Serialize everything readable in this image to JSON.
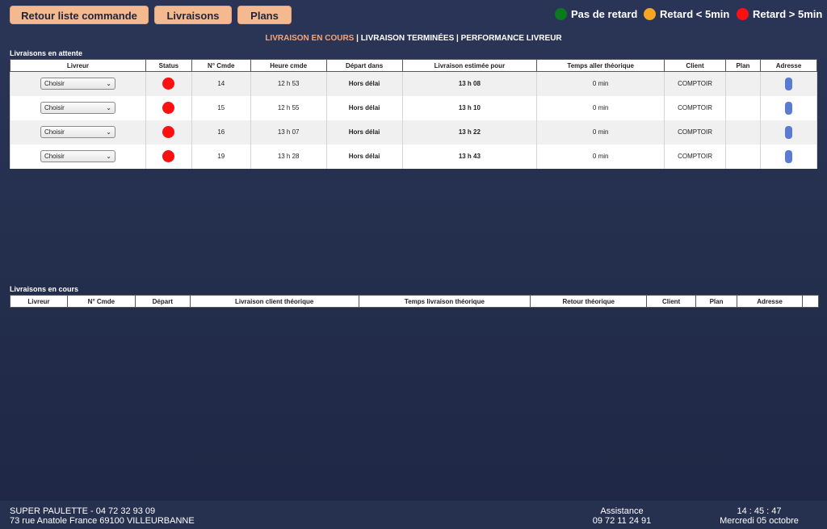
{
  "toolbar": {
    "back_label": "Retour liste commande",
    "deliveries_label": "Livraisons",
    "plans_label": "Plans"
  },
  "legend": [
    {
      "label": "Pas de retard",
      "color": "#0a7a1f"
    },
    {
      "label": "Retard < 5min",
      "color": "#f5a623"
    },
    {
      "label": "Retard > 5min",
      "color": "#ff1010"
    }
  ],
  "nav": {
    "active": "LIVRAISON EN COURS",
    "sep": " | ",
    "done": "LIVRAISON TERMINÉES",
    "perf": "PERFORMANCE LIVREUR"
  },
  "pending": {
    "title": "Livraisons en attente",
    "headers": [
      "Livreur",
      "Status",
      "N° Cmde",
      "Heure cmde",
      "Départ dans",
      "Livraison estimée pour",
      "Temps aller théorique",
      "Client",
      "Plan",
      "Adresse"
    ],
    "rows": [
      {
        "livreur": "Choisir",
        "status_color": "#ff1010",
        "num": "14",
        "heure": "12 h 53",
        "depart": "Hors délai",
        "estimee": "13 h 08",
        "temps": "0 min",
        "client": "COMPTOIR",
        "plan": ""
      },
      {
        "livreur": "Choisir",
        "status_color": "#ff1010",
        "num": "15",
        "heure": "12 h 55",
        "depart": "Hors délai",
        "estimee": "13 h 10",
        "temps": "0 min",
        "client": "COMPTOIR",
        "plan": ""
      },
      {
        "livreur": "Choisir",
        "status_color": "#ff1010",
        "num": "16",
        "heure": "13 h 07",
        "depart": "Hors délai",
        "estimee": "13 h 22",
        "temps": "0 min",
        "client": "COMPTOIR",
        "plan": ""
      },
      {
        "livreur": "Choisir",
        "status_color": "#ff1010",
        "num": "19",
        "heure": "13 h 28",
        "depart": "Hors délai",
        "estimee": "13 h 43",
        "temps": "0 min",
        "client": "COMPTOIR",
        "plan": ""
      }
    ]
  },
  "current": {
    "title": "Livraisons en cours",
    "headers": [
      "Livreur",
      "N° Cmde",
      "Départ",
      "Livraison client théorique",
      "Temps livraison théorique",
      "Retour théorique",
      "Client",
      "Plan",
      "Adresse",
      ""
    ]
  },
  "footer": {
    "company": "SUPER PAULETTE - 04 72 32 93 09",
    "address": "73 rue Anatole France 69100 VILLEURBANNE",
    "assist_label": "Assistance",
    "assist_phone": "09 72 11 24 91",
    "time": "14 : 45 : 47",
    "date": "Mercredi 05 octobre"
  }
}
